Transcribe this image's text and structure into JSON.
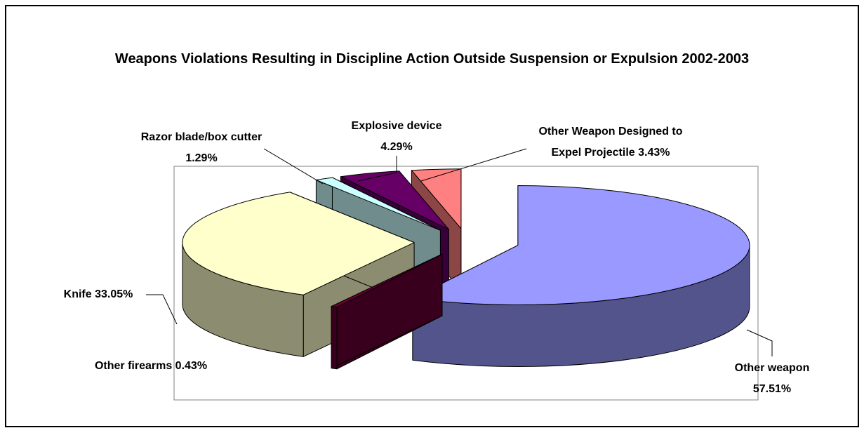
{
  "chart_data": {
    "type": "pie3d",
    "title": "Weapons Violations Resulting in Discipline Action Outside Suspension or Expulsion 2002-2003",
    "categories": [
      "Other weapon",
      "Other firearms",
      "Knife",
      "Razor blade/box cutter",
      "Explosive device",
      "Other Weapon Designed to Expel Projectile"
    ],
    "values": [
      57.51,
      0.43,
      33.05,
      1.29,
      4.29,
      3.43
    ],
    "value_labels": [
      "57.51%",
      "0.43%",
      "33.05%",
      "1.29%",
      "4.29%",
      "3.43%"
    ],
    "colors": [
      "#9999ff",
      "#660033",
      "#ffffcc",
      "#ccffff",
      "#660066",
      "#ff8080"
    ]
  }
}
